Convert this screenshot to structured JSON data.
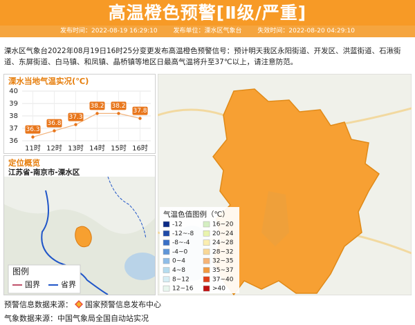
{
  "header": {
    "title": "高温橙色预警[Ⅱ级/严重]",
    "publish_time": "发布时间：2022-08-19 16:29:10",
    "publisher": "发布单位：溧水区气象台",
    "expire_time": "失效时间：2022-08-20 04:29:10"
  },
  "body_text": "溧水区气象台2022年08月19日16时25分变更发布高温橙色预警信号：预计明天我区永阳街道、开发区、洪蓝街道、石湫街道、东屏街道、白马镇、和凤镇、晶桥镇等地区日最高气温将升至37℃以上，请注意防范。",
  "chart_data": {
    "type": "line",
    "title": "溧水当地气温实况(℃)",
    "categories": [
      "11时",
      "12时",
      "13时",
      "14时",
      "15时",
      "16时"
    ],
    "values": [
      36.3,
      36.8,
      37.3,
      38.2,
      38.2,
      37.8
    ],
    "color": "#e8761b",
    "ylim": [
      36,
      40
    ],
    "yticks": [
      36,
      37,
      38,
      39,
      40
    ],
    "grid": true
  },
  "overview": {
    "title": "定位概览",
    "location": "江苏省-南京市-溧水区",
    "legend_title": "图例",
    "legend": [
      {
        "label": "国界",
        "color": "#c0506a"
      },
      {
        "label": "省界",
        "color": "#1f55c8"
      }
    ]
  },
  "map_legend": {
    "title": "气温色值图例（℃）",
    "items": [
      {
        "label": "-12",
        "color": "#0b2a86"
      },
      {
        "label": "-12~-8",
        "color": "#1f4aa8"
      },
      {
        "label": "-8~-4",
        "color": "#3a6fc6"
      },
      {
        "label": "-4~0",
        "color": "#5f95d8"
      },
      {
        "label": "0~4",
        "color": "#8fbde8"
      },
      {
        "label": "4~8",
        "color": "#b6dcef"
      },
      {
        "label": "8~12",
        "color": "#d6eef5"
      },
      {
        "label": "12~16",
        "color": "#e8f6ee"
      },
      {
        "label": "16~20",
        "color": "#d5efc2"
      },
      {
        "label": "20~24",
        "color": "#e9f4ad"
      },
      {
        "label": "24~28",
        "color": "#fbeeb0"
      },
      {
        "label": "28~32",
        "color": "#f9d896"
      },
      {
        "label": "32~35",
        "color": "#f6b476"
      },
      {
        "label": "35~37",
        "color": "#f29a40"
      },
      {
        "label": "37~40",
        "color": "#e0401a"
      },
      {
        "label": ">40",
        "color": "#c01010"
      }
    ]
  },
  "footer": {
    "warning_source_label": "预警信息数据来源：",
    "warning_source": "国家预警信息发布中心",
    "weather_source": "气象数据来源：中国气象局全国自动站实况"
  }
}
